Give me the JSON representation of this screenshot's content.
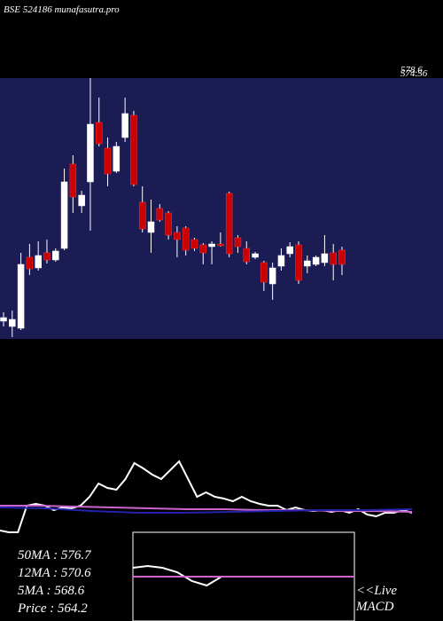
{
  "chart_data": [
    {
      "type": "candlestick",
      "title": "BSE 524186 munafasutra.pro",
      "annotations": [
        "578.6",
        "574.56"
      ],
      "up_color": "#ffffff",
      "down_color": "#cc0000",
      "background": "#1c1c54",
      "ylim": [
        555.8,
        585.2
      ],
      "open": [
        557.8,
        557.2,
        557.0,
        565.0,
        563.8,
        565.5,
        564.7,
        566.0,
        575.5,
        570.8,
        573.5,
        580.2,
        577.3,
        574.7,
        578.5,
        581.0,
        571.2,
        567.8,
        570.5,
        570.0,
        567.8,
        568.3,
        567.0,
        566.4,
        566.2,
        566.5,
        572.2,
        567.2,
        566.0,
        565.0,
        564.4,
        562.0,
        564.0,
        565.4,
        566.4,
        564.0,
        564.2,
        564.4,
        565.5,
        565.8
      ],
      "high": [
        558.8,
        559.0,
        565.5,
        566.5,
        566.8,
        567.0,
        566.0,
        575.0,
        576.5,
        572.5,
        585.2,
        583.0,
        578.5,
        578.0,
        583.0,
        581.5,
        573.0,
        571.5,
        571.0,
        570.2,
        568.5,
        568.5,
        567.2,
        566.6,
        566.8,
        567.8,
        572.4,
        567.5,
        566.8,
        565.6,
        564.6,
        564.4,
        566.0,
        566.7,
        566.8,
        565.2,
        565.2,
        567.5,
        566.5,
        566.2
      ],
      "low": [
        557.2,
        556.0,
        556.8,
        563.0,
        563.5,
        564.3,
        564.5,
        565.8,
        570.0,
        570.0,
        568.0,
        577.5,
        573.0,
        574.5,
        578.0,
        573.0,
        567.8,
        565.5,
        569.0,
        567.0,
        565.0,
        565.2,
        565.7,
        564.2,
        564.2,
        566.2,
        565.0,
        565.5,
        564.2,
        564.8,
        561.2,
        560.2,
        563.5,
        565.0,
        562.0,
        563.2,
        564.0,
        564.0,
        562.4,
        563.0
      ],
      "close": [
        558.2,
        558.0,
        564.2,
        563.7,
        565.2,
        564.7,
        565.7,
        573.5,
        571.8,
        572.0,
        580.0,
        577.8,
        574.4,
        577.5,
        581.2,
        573.2,
        568.2,
        569.0,
        569.2,
        567.5,
        567.0,
        565.8,
        566.0,
        565.5,
        566.5,
        566.3,
        565.4,
        566.2,
        564.5,
        565.4,
        562.2,
        563.8,
        565.2,
        566.2,
        562.4,
        564.6,
        565.0,
        565.4,
        564.2,
        564.2
      ]
    },
    {
      "type": "line",
      "ylim": [
        0,
        100
      ],
      "series": [
        {
          "color": "#ffffff",
          "values": [
            2,
            0,
            0,
            30,
            32,
            30,
            25,
            28,
            27,
            30,
            40,
            55,
            50,
            48,
            60,
            78,
            72,
            65,
            60,
            70,
            80,
            60,
            40,
            45,
            40,
            38,
            35,
            40,
            35,
            32,
            30,
            30,
            25,
            28,
            25,
            24,
            25,
            23,
            25,
            22,
            26,
            20,
            18,
            22,
            22,
            25,
            22
          ]
        },
        {
          "color": "#cc66cc",
          "values": [
            30,
            30,
            29,
            28,
            27,
            26,
            26,
            25,
            25,
            24,
            24,
            23
          ]
        },
        {
          "color": "#2222aa",
          "values": [
            28,
            27,
            24,
            22,
            22,
            23,
            24,
            25,
            25,
            26
          ]
        }
      ]
    },
    {
      "type": "line",
      "ylim": [
        0,
        100
      ],
      "panel": "macd",
      "series": [
        {
          "color": "#ffffff",
          "values": [
            60,
            62,
            60,
            55,
            45,
            40,
            50,
            50,
            50,
            50,
            50,
            50,
            50,
            50,
            50,
            50
          ]
        },
        {
          "color": "#cc66cc",
          "values": [
            50,
            50,
            50,
            50,
            50,
            50,
            50,
            50,
            50,
            50,
            50,
            50,
            50,
            50,
            50,
            50
          ]
        }
      ]
    }
  ],
  "legend": {
    "items": [
      "50MA : 576.7",
      "12MA : 570.6",
      "5MA : 568.6",
      "Price   : 564.2"
    ],
    "live": "<<Live",
    "macd": "MACD"
  }
}
